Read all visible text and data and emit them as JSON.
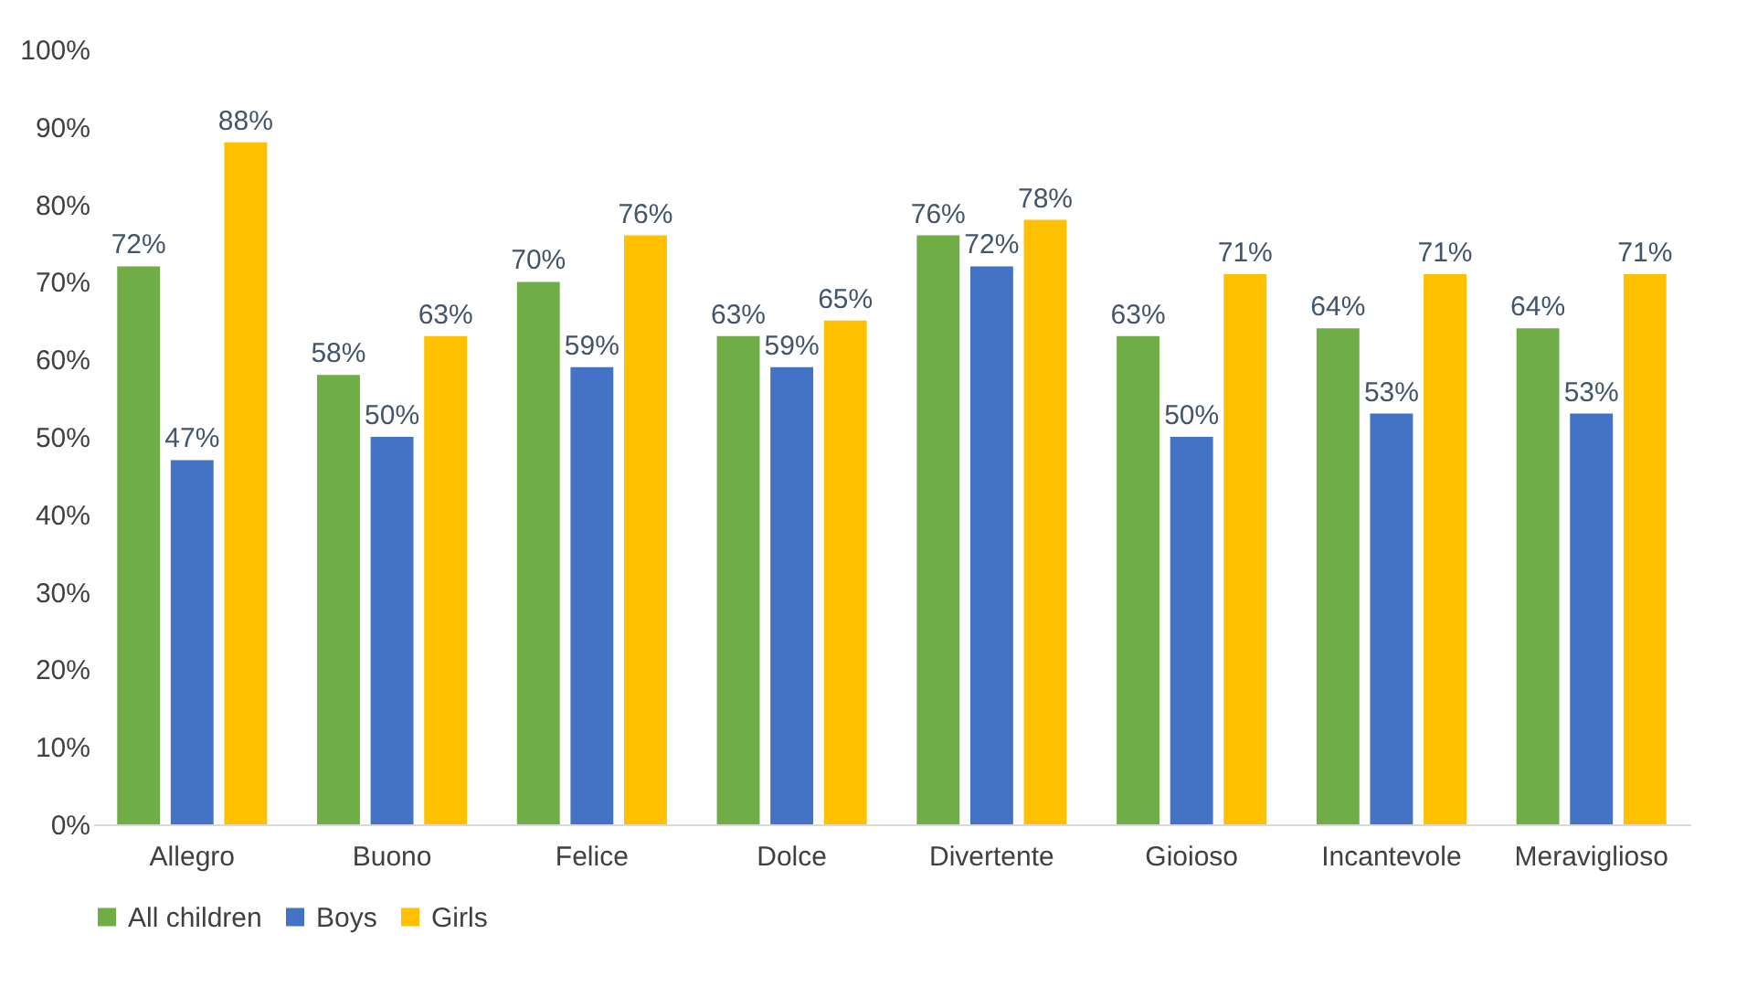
{
  "chart_data": {
    "type": "bar",
    "categories": [
      "Allegro",
      "Buono",
      "Felice",
      "Dolce",
      "Divertente",
      "Gioioso",
      "Incantevole",
      "Meraviglioso"
    ],
    "series": [
      {
        "name": "All children",
        "color": "#70ad47",
        "values": [
          72,
          58,
          70,
          63,
          76,
          63,
          64,
          64
        ],
        "value_labels": [
          "72%",
          "58%",
          "70%",
          "63%",
          "76%",
          "63%",
          "64%",
          "64%"
        ]
      },
      {
        "name": "Boys",
        "color": "#4472c4",
        "values": [
          47,
          50,
          59,
          59,
          72,
          50,
          53,
          53
        ],
        "value_labels": [
          "47%",
          "50%",
          "59%",
          "59%",
          "72%",
          "50%",
          "53%",
          "53%"
        ]
      },
      {
        "name": "Girls",
        "color": "#ffc000",
        "values": [
          88,
          63,
          76,
          65,
          78,
          71,
          71,
          71
        ],
        "value_labels": [
          "88%",
          "63%",
          "76%",
          "65%",
          "78%",
          "71%",
          "71%",
          "71%"
        ]
      }
    ],
    "ylim": [
      0,
      100
    ],
    "yticks": [
      {
        "value": 0,
        "label": "0%"
      },
      {
        "value": 10,
        "label": "10%"
      },
      {
        "value": 20,
        "label": "20%"
      },
      {
        "value": 30,
        "label": "30%"
      },
      {
        "value": 40,
        "label": "40%"
      },
      {
        "value": 50,
        "label": "50%"
      },
      {
        "value": 60,
        "label": "60%"
      },
      {
        "value": 70,
        "label": "70%"
      },
      {
        "value": 80,
        "label": "80%"
      },
      {
        "value": 90,
        "label": "90%"
      },
      {
        "value": 100,
        "label": "100%"
      }
    ],
    "grid": false,
    "legend": "bottom"
  }
}
